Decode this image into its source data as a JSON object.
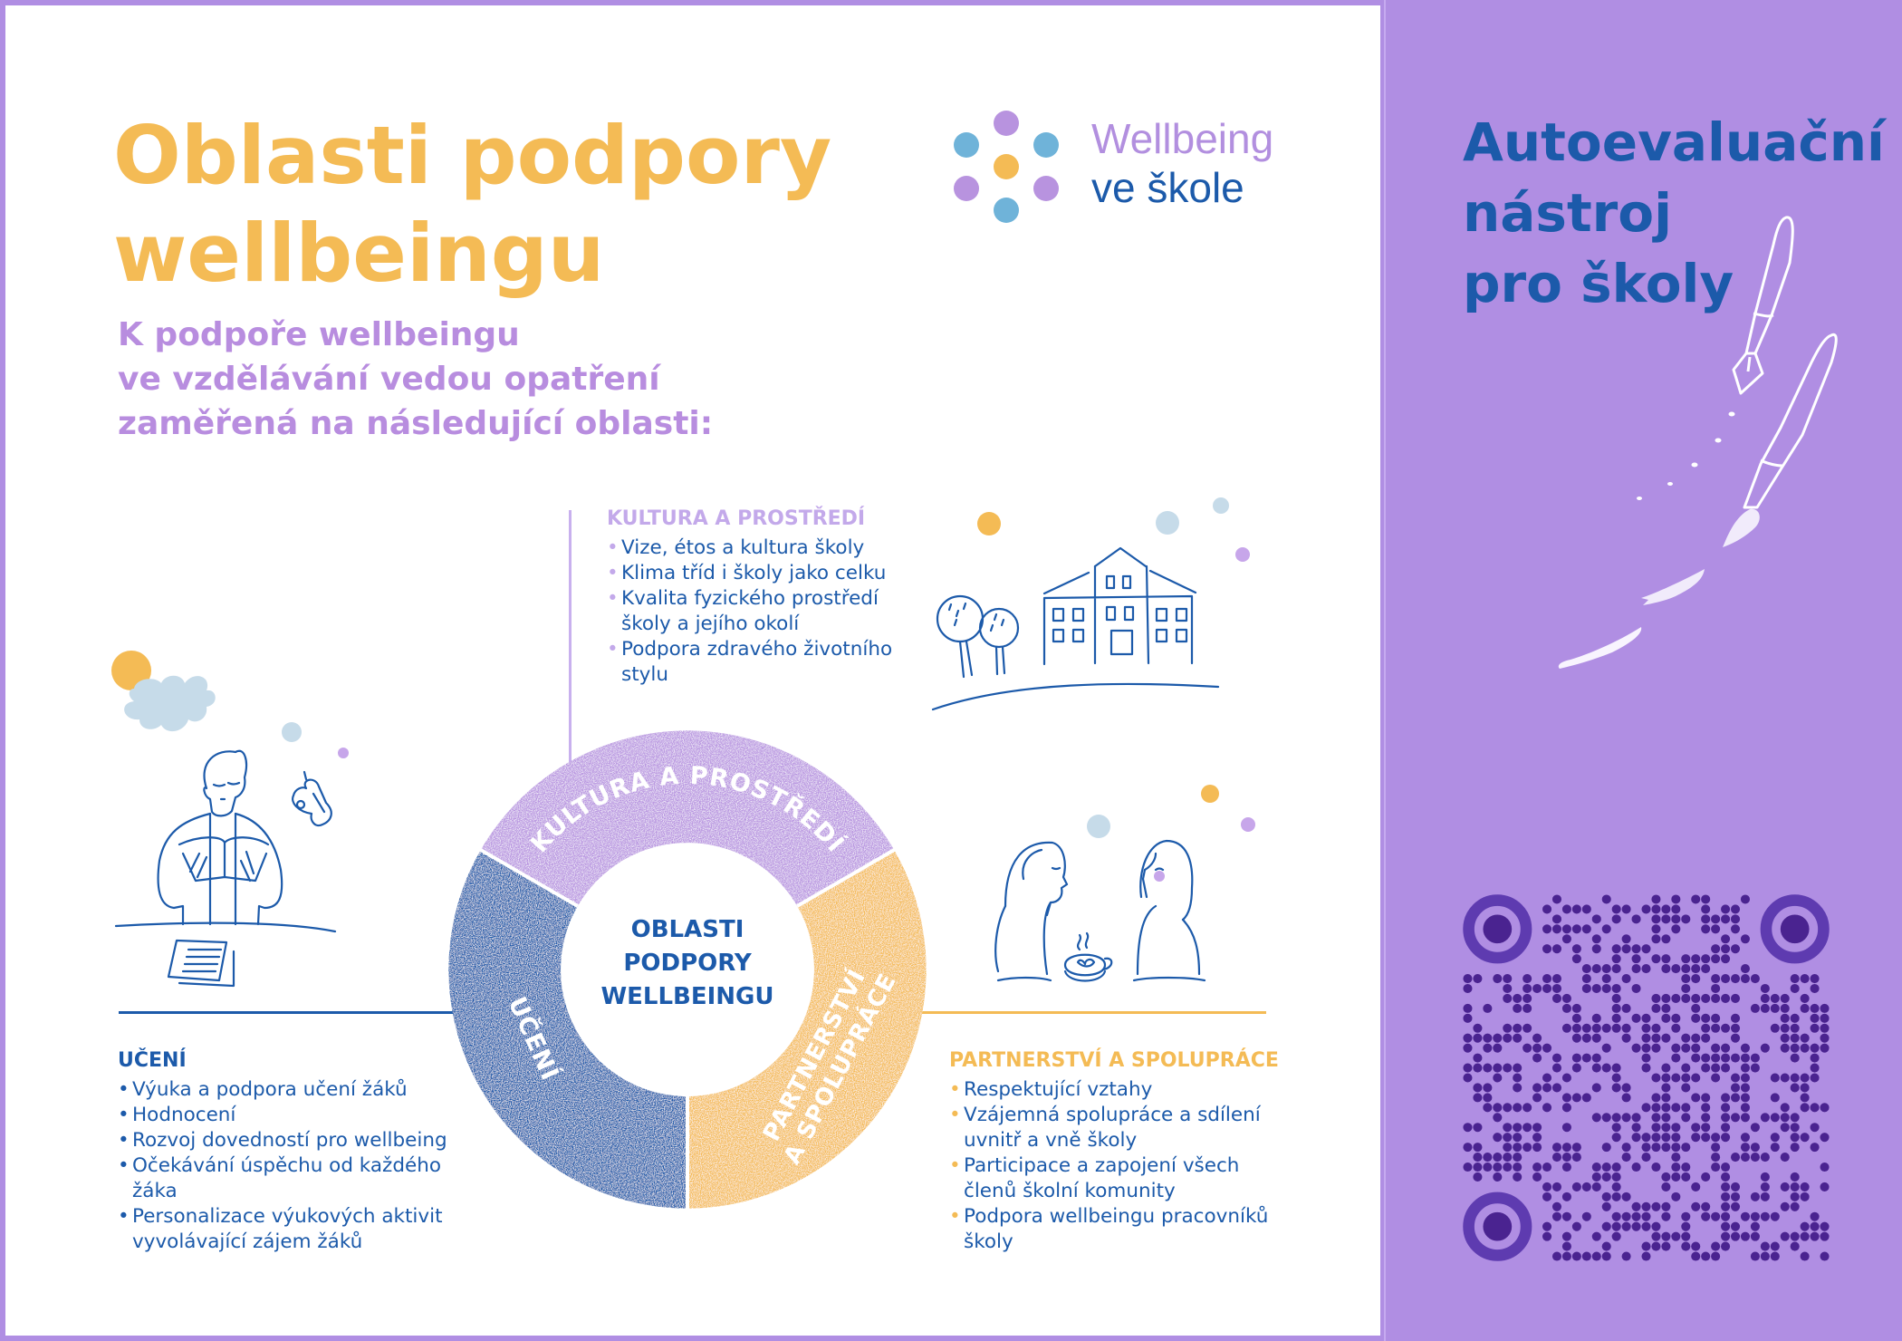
{
  "header": {
    "title_line1": "Oblasti podpory",
    "title_line2": "wellbeingu",
    "subtitle_line1": "K podpoře wellbeingu",
    "subtitle_line2": "ve vzdělávání vedou opatření",
    "subtitle_line3": "zaměřená na následující oblasti:"
  },
  "logo": {
    "line1": "Wellbeing",
    "line2": "ve škole",
    "dot_colors": [
      "#b893df",
      "#6fb3d9",
      "#f4bb55"
    ]
  },
  "side_panel": {
    "title_line1": "Autoevaluační",
    "title_line2": "nástroj",
    "title_line3": "pro školy",
    "qr_code_icon": "qr-code"
  },
  "diagram": {
    "center_line1": "OBLASTI",
    "center_line2": "PODPORY",
    "center_line3": "WELLBEINGU",
    "segments": [
      {
        "label": "KULTURA A PROSTŘEDÍ",
        "color": "#b894e0"
      },
      {
        "label_line1": "PARTNERSTVÍ",
        "label_line2": "A SPOLUPRÁCE",
        "color": "#f4bb55"
      },
      {
        "label": "UČENÍ",
        "color": "#1c5aaa"
      }
    ]
  },
  "sections": {
    "kultura": {
      "heading": "KULTURA A PROSTŘEDÍ",
      "color": "#c3a9ea",
      "items": [
        "Vize, étos a kultura školy",
        "Klima tříd i školy jako celku",
        "Kvalita fyzického prostředí školy a jejího okolí",
        "Podpora zdravého životního stylu"
      ]
    },
    "uceni": {
      "heading": "UČENÍ",
      "color": "#1c5aaa",
      "items": [
        "Výuka a podpora učení žáků",
        "Hodnocení",
        "Rozvoj dovedností pro wellbeing",
        "Očekávání úspěchu od každého žáka",
        "Personalizace výukových aktivit vyvolávající zájem žáků"
      ]
    },
    "partnerstvi": {
      "heading": "PARTNERSTVÍ A SPOLUPRÁCE",
      "color": "#f4bb55",
      "items": [
        "Respektující vztahy",
        "Vzájemná spolupráce a sdílení uvnitř a vně školy",
        "Participace a zapojení všech členů školní komunity",
        "Podpora wellbeingu pracovníků školy"
      ]
    }
  },
  "colors": {
    "background_purple": "#b08ee3",
    "title_yellow": "#f4bb55",
    "subtitle_purple": "#b88ddf",
    "text_blue": "#1c5aaa",
    "qr_dark": "#4a2390",
    "qr_ring": "#5e3bb0"
  }
}
